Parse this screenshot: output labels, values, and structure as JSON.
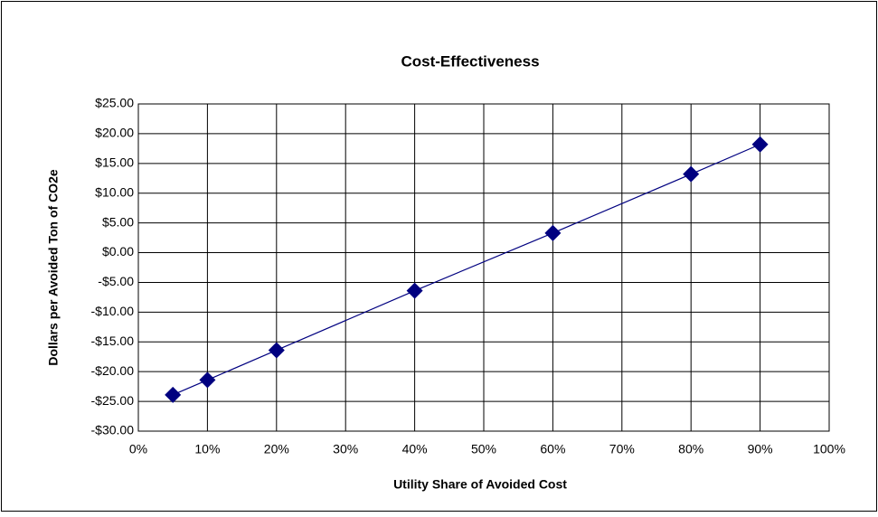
{
  "chart_data": {
    "type": "scatter",
    "title": "Cost-Effectiveness",
    "x_label": "Utility Share of Avoided Cost",
    "y_label": "Dollars per Avoided Ton of CO2e",
    "series": [
      {
        "name": "Cost-Effectiveness",
        "color": "#000080",
        "x": [
          5,
          10,
          20,
          40,
          60,
          80,
          90
        ],
        "values": [
          -23.9,
          -21.4,
          -16.4,
          -6.4,
          3.3,
          13.2,
          18.2
        ]
      }
    ],
    "xlim": [
      0,
      100
    ],
    "xticks": [
      {
        "value": 0,
        "label": "0%"
      },
      {
        "value": 10,
        "label": "10%"
      },
      {
        "value": 20,
        "label": "20%"
      },
      {
        "value": 30,
        "label": "30%"
      },
      {
        "value": 40,
        "label": "40%"
      },
      {
        "value": 50,
        "label": "50%"
      },
      {
        "value": 60,
        "label": "60%"
      },
      {
        "value": 70,
        "label": "70%"
      },
      {
        "value": 80,
        "label": "80%"
      },
      {
        "value": 90,
        "label": "90%"
      },
      {
        "value": 100,
        "label": "100%"
      }
    ],
    "ylim": [
      -30,
      25
    ],
    "yticks": [
      {
        "value": -30,
        "label": "-$30.00"
      },
      {
        "value": -25,
        "label": "-$25.00"
      },
      {
        "value": -20,
        "label": "-$20.00"
      },
      {
        "value": -15,
        "label": "-$15.00"
      },
      {
        "value": -10,
        "label": "-$10.00"
      },
      {
        "value": -5,
        "label": "-$5.00"
      },
      {
        "value": 0,
        "label": "$0.00"
      },
      {
        "value": 5,
        "label": "$5.00"
      },
      {
        "value": 10,
        "label": "$10.00"
      },
      {
        "value": 15,
        "label": "$15.00"
      },
      {
        "value": 20,
        "label": "$20.00"
      },
      {
        "value": 25,
        "label": "$25.00"
      }
    ],
    "grid": true
  }
}
